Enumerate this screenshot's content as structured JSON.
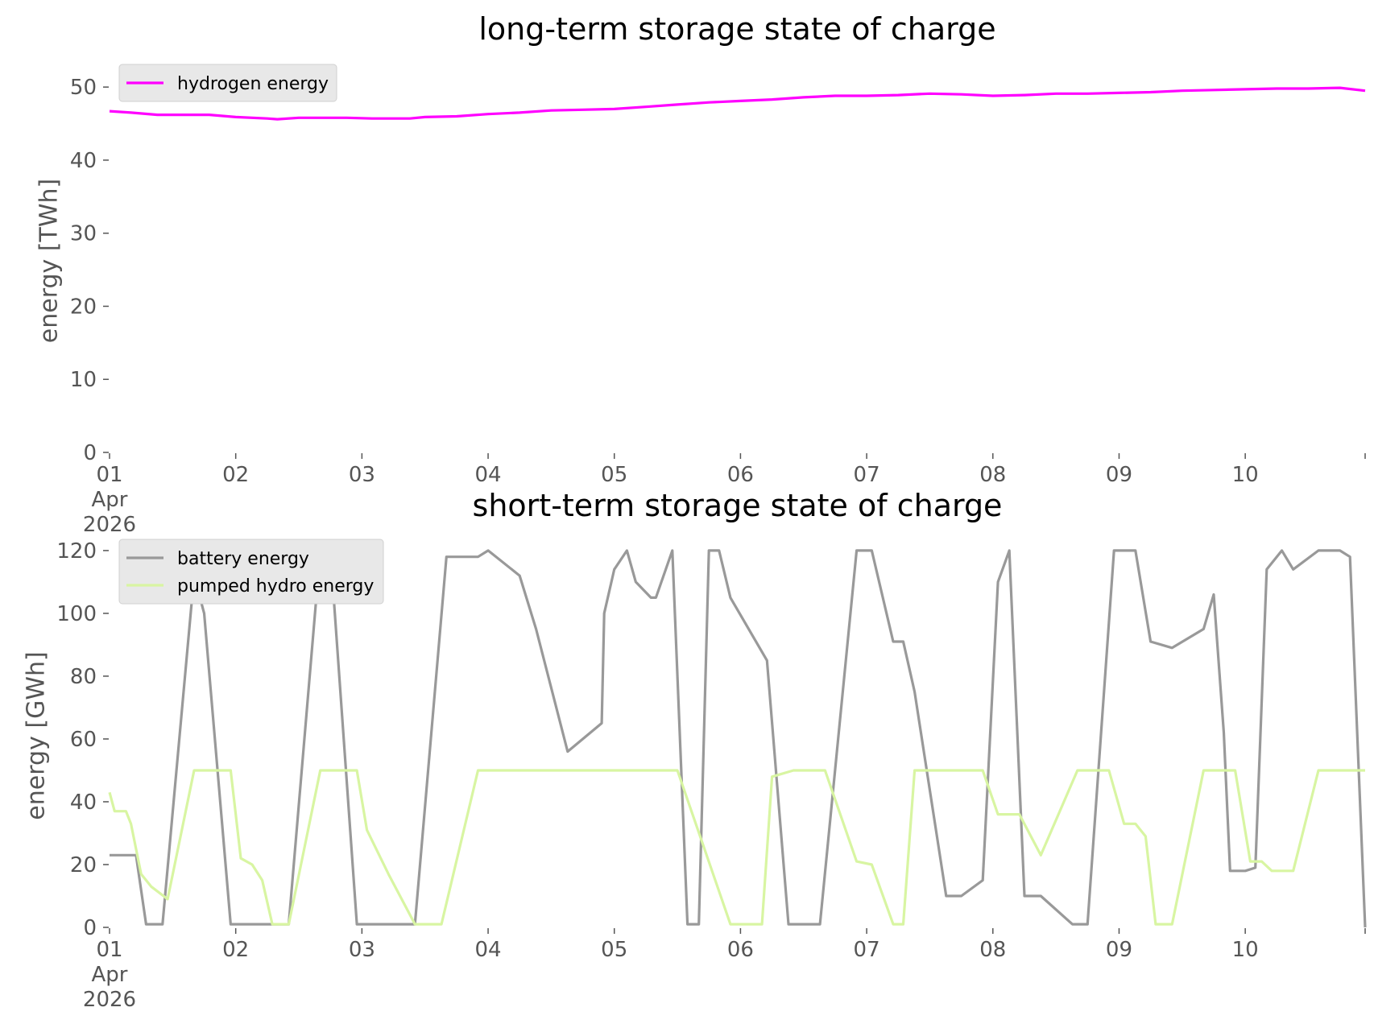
{
  "chart_data": [
    {
      "type": "line",
      "title": "long-term storage state of charge",
      "xlabel": "",
      "ylabel": "energy [TWh]",
      "ylim": [
        0,
        52
      ],
      "yticks": [
        0,
        10,
        20,
        30,
        40,
        50
      ],
      "x_tick_labels": [
        "01",
        "02",
        "03",
        "04",
        "05",
        "06",
        "07",
        "08",
        "09",
        "10"
      ],
      "x_first_tick_extra": [
        "Apr",
        "2026"
      ],
      "xlim": [
        0,
        9.95
      ],
      "legend": "top-left",
      "grid": false,
      "series": [
        {
          "name": "hydrogen energy",
          "color": "#ff00ff",
          "x": [
            0,
            0.17,
            0.38,
            0.58,
            0.79,
            1.0,
            1.25,
            1.33,
            1.5,
            1.67,
            1.88,
            2.08,
            2.25,
            2.38,
            2.5,
            2.75,
            3.0,
            3.25,
            3.5,
            3.75,
            4.0,
            4.25,
            4.5,
            4.75,
            5.0,
            5.25,
            5.5,
            5.75,
            6.0,
            6.25,
            6.5,
            6.75,
            7.0,
            7.25,
            7.5,
            7.75,
            8.0,
            8.25,
            8.5,
            8.75,
            9.0,
            9.25,
            9.5,
            9.75,
            9.95
          ],
          "values": [
            46.7,
            46.5,
            46.2,
            46.2,
            46.2,
            45.9,
            45.7,
            45.6,
            45.8,
            45.8,
            45.8,
            45.7,
            45.7,
            45.7,
            45.9,
            46.0,
            46.3,
            46.5,
            46.8,
            46.9,
            47.0,
            47.3,
            47.6,
            47.9,
            48.1,
            48.3,
            48.6,
            48.8,
            48.8,
            48.9,
            49.1,
            49.0,
            48.8,
            48.9,
            49.1,
            49.1,
            49.2,
            49.3,
            49.5,
            49.6,
            49.7,
            49.8,
            49.8,
            49.9,
            49.5
          ]
        }
      ]
    },
    {
      "type": "line",
      "title": "short-term storage state of charge",
      "xlabel": "",
      "ylabel": "energy [GWh]",
      "ylim": [
        0,
        121
      ],
      "yticks": [
        0,
        20,
        40,
        60,
        80,
        100,
        120
      ],
      "x_tick_labels": [
        "01",
        "02",
        "03",
        "04",
        "05",
        "06",
        "07",
        "08",
        "09",
        "10"
      ],
      "x_first_tick_extra": [
        "Apr",
        "2026"
      ],
      "xlim": [
        0,
        9.95
      ],
      "legend": "top-left",
      "grid": false,
      "series": [
        {
          "name": "battery energy",
          "color": "#999999",
          "x": [
            0,
            0.21,
            0.29,
            0.42,
            0.67,
            0.75,
            0.96,
            1.0,
            1.25,
            1.42,
            1.67,
            1.75,
            1.96,
            2.04,
            2.21,
            2.42,
            2.67,
            2.92,
            3.0,
            3.25,
            3.38,
            3.63,
            3.9,
            3.92,
            4.0,
            4.1,
            4.17,
            4.29,
            4.33,
            4.46,
            4.58,
            4.67,
            4.75,
            4.83,
            4.92,
            5.21,
            5.38,
            5.63,
            5.92,
            6.04,
            6.21,
            6.29,
            6.38,
            6.63,
            6.75,
            6.92,
            7.04,
            7.13,
            7.25,
            7.38,
            7.63,
            7.75,
            7.96,
            8.13,
            8.25,
            8.42,
            8.67,
            8.75,
            8.83,
            8.88,
            9.0,
            9.08,
            9.17,
            9.29,
            9.38,
            9.58,
            9.67,
            9.75,
            9.83,
            9.95
          ],
          "values": [
            23,
            23,
            1,
            1,
            112,
            100,
            1,
            1,
            1,
            1,
            120,
            120,
            1,
            1,
            1,
            1,
            118,
            118,
            120,
            112,
            95,
            56,
            65,
            100,
            114,
            120,
            110,
            105,
            105,
            120,
            1,
            1,
            120,
            120,
            105,
            85,
            1,
            1,
            120,
            120,
            91,
            91,
            75,
            10,
            10,
            15,
            110,
            120,
            10,
            10,
            1,
            1,
            120,
            120,
            91,
            89,
            95,
            106,
            62,
            18,
            18,
            19,
            114,
            120,
            114,
            120,
            120,
            120,
            118,
            0
          ]
        },
        {
          "name": "pumped hydro energy",
          "color": "#d8f5a2",
          "x": [
            0,
            0.04,
            0.13,
            0.17,
            0.25,
            0.33,
            0.46,
            0.67,
            0.96,
            1.04,
            1.13,
            1.21,
            1.29,
            1.42,
            1.67,
            1.96,
            2.04,
            2.21,
            2.42,
            2.63,
            2.92,
            3.04,
            3.13,
            3.25,
            3.54,
            3.63,
            3.67,
            4.0,
            4.25,
            4.5,
            4.92,
            5.17,
            5.25,
            5.42,
            5.67,
            5.92,
            6.04,
            6.21,
            6.29,
            6.38,
            6.67,
            6.92,
            7.04,
            7.13,
            7.21,
            7.38,
            7.67,
            7.92,
            8.04,
            8.13,
            8.21,
            8.29,
            8.42,
            8.67,
            8.92,
            9.04,
            9.13,
            9.21,
            9.29,
            9.38,
            9.58,
            9.95
          ],
          "values": [
            43,
            37,
            37,
            33,
            17,
            13,
            9,
            50,
            50,
            22,
            20,
            15,
            1,
            1,
            50,
            50,
            31,
            17,
            1,
            1,
            50,
            50,
            50,
            50,
            50,
            50,
            50,
            50,
            50,
            50,
            1,
            1,
            48,
            50,
            50,
            21,
            20,
            1,
            1,
            50,
            50,
            50,
            36,
            36,
            36,
            23,
            50,
            50,
            33,
            33,
            29,
            1,
            1,
            50,
            50,
            21,
            21,
            18,
            18,
            18,
            50,
            50
          ]
        }
      ]
    }
  ]
}
